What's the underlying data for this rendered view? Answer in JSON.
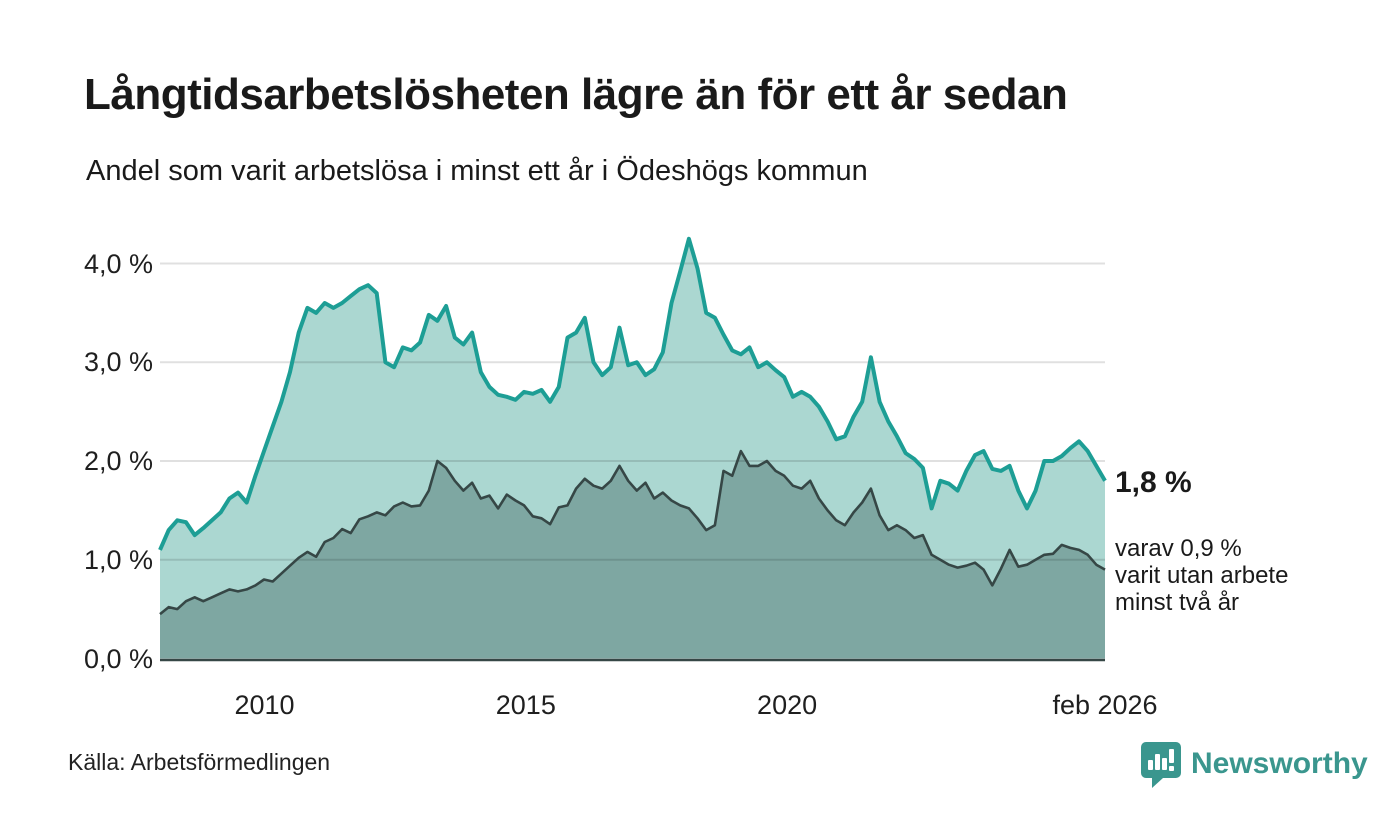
{
  "header": {
    "title": "Långtidsarbetslösheten lägre än för ett år sedan",
    "subtitle": "Andel som varit arbetslösa i minst ett år i Ödeshögs kommun"
  },
  "annotations": {
    "latest_value": "1,8 %",
    "secondary_lines": [
      "varav 0,9 %",
      "varit utan arbete",
      "minst två år"
    ]
  },
  "footer": {
    "source": "Källa: Arbetsförmedlingen",
    "brand": "Newsworthy"
  },
  "colors": {
    "line_1yr": "#1d9e95",
    "fill_1yr": "#abd7d1",
    "line_2yr": "#364746",
    "fill_2yr": "#7ea7a2",
    "gridline": "rgba(0,0,0,0.12)",
    "baseline": "#364746",
    "text": "#1a1a1a",
    "brand_teal": "#3a968e"
  },
  "chart_data": {
    "type": "area",
    "title": "Långtidsarbetslösheten lägre än för ett år sedan",
    "subtitle": "Andel som varit arbetslösa i minst ett år i Ödeshögs kommun",
    "unit": "%",
    "x_start": 2008.0,
    "x_end": 2026.083,
    "x_axis": {
      "ticks": [
        {
          "year": 2010,
          "label": "2010"
        },
        {
          "year": 2015,
          "label": "2015"
        },
        {
          "year": 2020,
          "label": "2020"
        },
        {
          "year": 2026.083,
          "label": "feb 2026"
        }
      ]
    },
    "y_axis": {
      "range": [
        0,
        4.4
      ],
      "gridline_values": [
        1,
        2,
        3,
        4
      ],
      "ticks": [
        {
          "value": 0,
          "label": "0,0 %"
        },
        {
          "value": 1,
          "label": "1,0 %"
        },
        {
          "value": 2,
          "label": "2,0 %"
        },
        {
          "value": 3,
          "label": "3,0 %"
        },
        {
          "value": 4,
          "label": "4,0 %"
        }
      ]
    },
    "legend_position": "none",
    "grid": true,
    "series": [
      {
        "name": "Andel arbetslösa minst ett år",
        "latest_label": "1,8 %",
        "stroke": "#1d9e95",
        "fill": "#abd7d1",
        "values": [
          1.1,
          1.3,
          1.4,
          1.38,
          1.25,
          1.32,
          1.4,
          1.48,
          1.62,
          1.68,
          1.58,
          1.85,
          2.1,
          2.35,
          2.6,
          2.9,
          3.3,
          3.55,
          3.5,
          3.6,
          3.55,
          3.6,
          3.67,
          3.74,
          3.78,
          3.7,
          3.0,
          2.95,
          3.15,
          3.12,
          3.2,
          3.48,
          3.42,
          3.57,
          3.25,
          3.18,
          3.3,
          2.9,
          2.75,
          2.67,
          2.65,
          2.62,
          2.7,
          2.68,
          2.72,
          2.6,
          2.75,
          3.25,
          3.3,
          3.45,
          3.0,
          2.87,
          2.95,
          3.35,
          2.97,
          3.0,
          2.87,
          2.93,
          3.1,
          3.6,
          3.92,
          4.25,
          3.95,
          3.5,
          3.45,
          3.28,
          3.12,
          3.08,
          3.15,
          2.95,
          3.0,
          2.92,
          2.85,
          2.65,
          2.7,
          2.65,
          2.55,
          2.4,
          2.22,
          2.25,
          2.45,
          2.6,
          3.05,
          2.6,
          2.4,
          2.25,
          2.08,
          2.02,
          1.93,
          1.52,
          1.8,
          1.77,
          1.7,
          1.9,
          2.06,
          2.1,
          1.92,
          1.9,
          1.95,
          1.7,
          1.52,
          1.7,
          2.0,
          2.0,
          2.05,
          2.13,
          2.2,
          2.1,
          1.95,
          1.8
        ]
      },
      {
        "name": "Andel arbetslösa minst två år",
        "latest_label": "0,9 %",
        "stroke": "#364746",
        "fill": "#7ea7a2",
        "values": [
          0.45,
          0.52,
          0.5,
          0.58,
          0.62,
          0.58,
          0.62,
          0.66,
          0.7,
          0.68,
          0.7,
          0.74,
          0.8,
          0.78,
          0.86,
          0.94,
          1.02,
          1.08,
          1.03,
          1.18,
          1.22,
          1.31,
          1.27,
          1.41,
          1.44,
          1.48,
          1.45,
          1.54,
          1.58,
          1.54,
          1.55,
          1.7,
          2.0,
          1.93,
          1.8,
          1.7,
          1.78,
          1.62,
          1.65,
          1.52,
          1.66,
          1.6,
          1.55,
          1.44,
          1.42,
          1.36,
          1.53,
          1.55,
          1.72,
          1.82,
          1.75,
          1.72,
          1.8,
          1.95,
          1.8,
          1.7,
          1.78,
          1.62,
          1.68,
          1.6,
          1.55,
          1.52,
          1.42,
          1.3,
          1.35,
          1.9,
          1.85,
          2.1,
          1.95,
          1.95,
          2.0,
          1.9,
          1.85,
          1.75,
          1.72,
          1.8,
          1.62,
          1.5,
          1.4,
          1.35,
          1.48,
          1.58,
          1.72,
          1.45,
          1.3,
          1.35,
          1.3,
          1.22,
          1.25,
          1.05,
          1.0,
          0.95,
          0.92,
          0.94,
          0.97,
          0.9,
          0.74,
          0.91,
          1.1,
          0.93,
          0.95,
          1.0,
          1.05,
          1.06,
          1.15,
          1.12,
          1.1,
          1.05,
          0.95,
          0.9
        ]
      }
    ]
  }
}
